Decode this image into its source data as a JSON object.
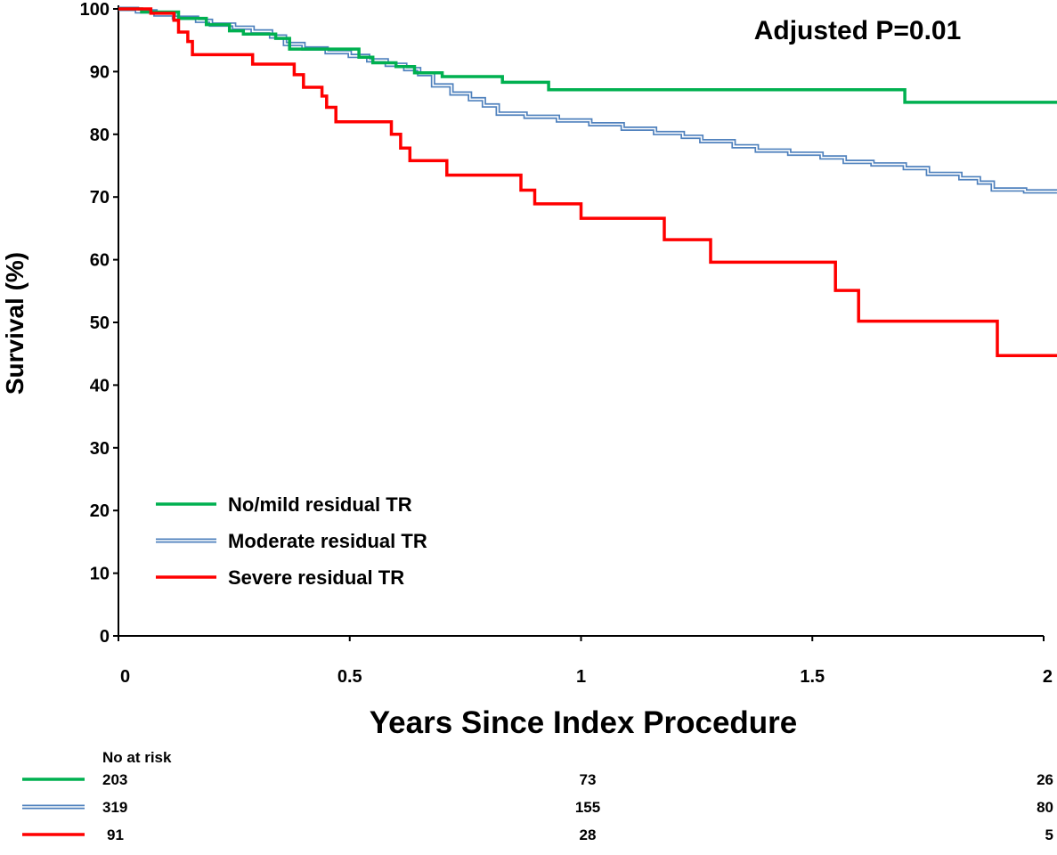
{
  "chart_data": {
    "type": "line",
    "subtype": "kaplan-meier-step",
    "xlabel": "Years Since Index Procedure",
    "ylabel": "Survival (%)",
    "xlim": [
      0,
      2
    ],
    "ylim": [
      0,
      100
    ],
    "xticks": [
      0,
      0.5,
      1,
      1.5,
      2
    ],
    "xtick_labels": [
      "0",
      "0.5",
      "1",
      "1.5",
      "2"
    ],
    "yticks": [
      0,
      10,
      20,
      30,
      40,
      50,
      60,
      70,
      80,
      90,
      100
    ],
    "ytick_labels": [
      "0",
      "10",
      "20",
      "30",
      "40",
      "50",
      "60",
      "70",
      "80",
      "90",
      "100"
    ],
    "grid": false,
    "legend_position": "lower-left",
    "annotation": "Adjusted P=0.01",
    "series": [
      {
        "name": "No/mild residual TR",
        "color": "#00b050",
        "style": "solid",
        "points": [
          [
            0,
            100
          ],
          [
            0.05,
            99.5
          ],
          [
            0.13,
            98.5
          ],
          [
            0.19,
            97.5
          ],
          [
            0.24,
            96.5
          ],
          [
            0.27,
            96
          ],
          [
            0.34,
            95.3
          ],
          [
            0.37,
            93.6
          ],
          [
            0.52,
            92.3
          ],
          [
            0.55,
            91.4
          ],
          [
            0.6,
            90.8
          ],
          [
            0.64,
            89.8
          ],
          [
            0.7,
            89.2
          ],
          [
            0.83,
            88.3
          ],
          [
            0.93,
            87.1
          ],
          [
            1.7,
            85.1
          ],
          [
            2.03,
            85.1
          ]
        ]
      },
      {
        "name": "Moderate residual TR",
        "color": "#4f81bd",
        "style": "double",
        "points": [
          [
            0,
            100
          ],
          [
            0.04,
            99.6
          ],
          [
            0.08,
            99.1
          ],
          [
            0.12,
            98.6
          ],
          [
            0.17,
            98.1
          ],
          [
            0.2,
            97.5
          ],
          [
            0.25,
            97
          ],
          [
            0.29,
            96.4
          ],
          [
            0.33,
            95.6
          ],
          [
            0.36,
            94.4
          ],
          [
            0.4,
            93.7
          ],
          [
            0.45,
            93.1
          ],
          [
            0.5,
            92.5
          ],
          [
            0.54,
            91.8
          ],
          [
            0.58,
            91.1
          ],
          [
            0.62,
            90.4
          ],
          [
            0.65,
            89.6
          ],
          [
            0.68,
            87.8
          ],
          [
            0.72,
            86.5
          ],
          [
            0.76,
            85.6
          ],
          [
            0.79,
            84.6
          ],
          [
            0.82,
            83.3
          ],
          [
            0.88,
            82.8
          ],
          [
            0.95,
            82.2
          ],
          [
            1.02,
            81.6
          ],
          [
            1.09,
            80.9
          ],
          [
            1.16,
            80.2
          ],
          [
            1.22,
            79.6
          ],
          [
            1.26,
            78.9
          ],
          [
            1.33,
            78.1
          ],
          [
            1.38,
            77.4
          ],
          [
            1.45,
            76.9
          ],
          [
            1.52,
            76.3
          ],
          [
            1.57,
            75.6
          ],
          [
            1.63,
            75.2
          ],
          [
            1.7,
            74.6
          ],
          [
            1.75,
            73.7
          ],
          [
            1.82,
            73
          ],
          [
            1.86,
            72.3
          ],
          [
            1.89,
            71.2
          ],
          [
            1.96,
            70.9
          ],
          [
            2.03,
            70.7
          ]
        ]
      },
      {
        "name": "Severe residual TR",
        "color": "#ff0000",
        "style": "solid",
        "points": [
          [
            0,
            100
          ],
          [
            0.07,
            99.3
          ],
          [
            0.12,
            98.2
          ],
          [
            0.13,
            96.3
          ],
          [
            0.15,
            94.8
          ],
          [
            0.16,
            92.7
          ],
          [
            0.29,
            91.2
          ],
          [
            0.38,
            89.5
          ],
          [
            0.4,
            87.5
          ],
          [
            0.44,
            86.1
          ],
          [
            0.45,
            84.3
          ],
          [
            0.47,
            82
          ],
          [
            0.59,
            80
          ],
          [
            0.61,
            77.8
          ],
          [
            0.63,
            75.8
          ],
          [
            0.71,
            73.5
          ],
          [
            0.87,
            71.1
          ],
          [
            0.9,
            68.9
          ],
          [
            1,
            66.6
          ],
          [
            1.18,
            63.2
          ],
          [
            1.28,
            59.6
          ],
          [
            1.55,
            55.1
          ],
          [
            1.6,
            50.2
          ],
          [
            1.9,
            44.7
          ],
          [
            2.03,
            44.7
          ]
        ]
      }
    ],
    "risk_table": {
      "title": "No at risk",
      "x": [
        0,
        1,
        2
      ],
      "rows": [
        {
          "series": "No/mild residual TR",
          "values": [
            "203",
            "73",
            "26"
          ]
        },
        {
          "series": "Moderate residual TR",
          "values": [
            "319",
            "155",
            "80"
          ]
        },
        {
          "series": "Severe residual TR",
          "values": [
            "91",
            "28",
            "5"
          ]
        }
      ]
    }
  }
}
